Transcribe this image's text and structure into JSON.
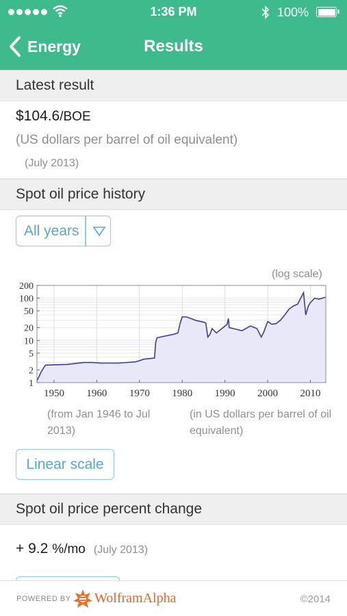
{
  "status_bar": {
    "time": "1:36 PM",
    "battery": "100%"
  },
  "nav": {
    "back_label": "Energy",
    "title": "Results"
  },
  "latest": {
    "header": "Latest result",
    "value": "$104.6",
    "unit": "/BOE",
    "description": "(US dollars per barrel of oil equivalent)",
    "date": "(July 2013)"
  },
  "history": {
    "header": "Spot oil price history",
    "range_select": "All years",
    "scale_note": "(log scale)",
    "caption_left": "(from Jan 1946 to Jul 2013)",
    "caption_right": "(in US dollars per barrel of oil equivalent)",
    "linear_button": "Linear scale"
  },
  "percent": {
    "header": "Spot oil price percent change",
    "value": "+ 9.2",
    "unit": "%/mo",
    "date": "(July 2013)"
  },
  "footer": {
    "powered_by": "POWERED BY",
    "brand": "WolframAlpha",
    "copyright": "©2014"
  },
  "colors": {
    "accent": "#3dbb8c",
    "series": "#3c3c9c",
    "fill": "#e8e8f8",
    "link": "#5aa8c8"
  },
  "chart_data": {
    "type": "line",
    "scale": "log",
    "grid": true,
    "xlim": [
      1946,
      2013.6
    ],
    "ylim": [
      1,
      200
    ],
    "x_ticks": [
      "1950",
      "1960",
      "1970",
      "1980",
      "1990",
      "2000",
      "2010"
    ],
    "y_ticks": [
      "1",
      "2",
      "5",
      "10",
      "20",
      "50",
      "100",
      "200"
    ],
    "series": [
      {
        "x": [
          1946.0,
          1946.5,
          1947.0,
          1947.5,
          1948.0,
          1953.0,
          1957.0,
          1959.0,
          1961.0,
          1965.0,
          1969.0,
          1970.0,
          1971.0,
          1973.5,
          1973.8,
          1974.1,
          1978.0,
          1979.0,
          1979.5,
          1980.0,
          1981.0,
          1982.0,
          1983.0,
          1985.0,
          1985.5,
          1986.0,
          1986.5,
          1987.0,
          1988.0,
          1989.0,
          1990.5,
          1990.8,
          1991.0,
          1992.0,
          1994.0,
          1996.0,
          1997.5,
          1998.5,
          1999.0,
          2000.0,
          2001.0,
          2002.0,
          2003.0,
          2004.0,
          2005.0,
          2006.0,
          2007.0,
          2008.4,
          2008.9,
          2009.5,
          2010.0,
          2011.0,
          2012.0,
          2013.5
        ],
        "y": [
          1.1,
          1.4,
          1.8,
          2.2,
          2.6,
          2.7,
          3.0,
          3.0,
          2.9,
          2.9,
          3.1,
          3.3,
          3.6,
          3.8,
          9.0,
          11.5,
          14.0,
          15.0,
          25.0,
          36.0,
          36.0,
          33.0,
          30.0,
          27.0,
          26.0,
          12.0,
          14.0,
          19.0,
          15.0,
          18.0,
          24.0,
          33.0,
          20.0,
          19.0,
          17.0,
          22.0,
          19.0,
          12.0,
          15.0,
          28.0,
          24.0,
          25.0,
          30.0,
          40.0,
          55.0,
          65.0,
          72.0,
          135.0,
          40.0,
          65.0,
          78.0,
          100.0,
          95.0,
          104.6
        ]
      }
    ]
  }
}
